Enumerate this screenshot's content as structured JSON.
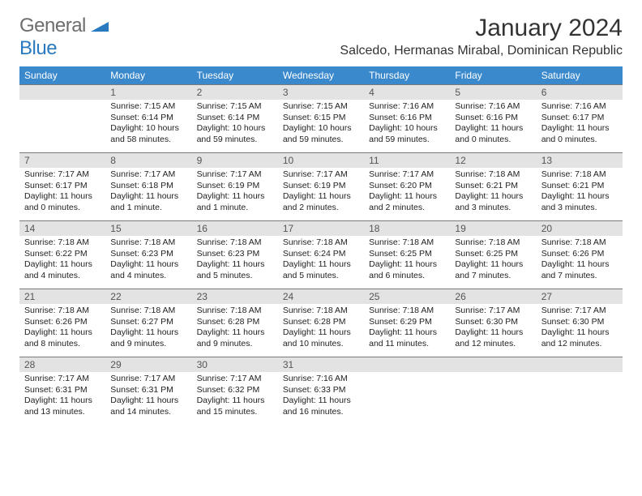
{
  "logo": {
    "text1": "General",
    "text2": "Blue"
  },
  "title": "January 2024",
  "location": "Salcedo, Hermanas Mirabal, Dominican Republic",
  "colors": {
    "header_bg": "#3a89cc",
    "header_text": "#ffffff",
    "daynum_bg": "#e3e3e3",
    "logo_gray": "#6d6d6d",
    "logo_blue": "#2a7abf",
    "border": "#7a7a7a"
  },
  "weekdays": [
    "Sunday",
    "Monday",
    "Tuesday",
    "Wednesday",
    "Thursday",
    "Friday",
    "Saturday"
  ],
  "weeks": [
    [
      null,
      {
        "n": "1",
        "sr": "Sunrise: 7:15 AM",
        "ss": "Sunset: 6:14 PM",
        "dl1": "Daylight: 10 hours",
        "dl2": "and 58 minutes."
      },
      {
        "n": "2",
        "sr": "Sunrise: 7:15 AM",
        "ss": "Sunset: 6:14 PM",
        "dl1": "Daylight: 10 hours",
        "dl2": "and 59 minutes."
      },
      {
        "n": "3",
        "sr": "Sunrise: 7:15 AM",
        "ss": "Sunset: 6:15 PM",
        "dl1": "Daylight: 10 hours",
        "dl2": "and 59 minutes."
      },
      {
        "n": "4",
        "sr": "Sunrise: 7:16 AM",
        "ss": "Sunset: 6:16 PM",
        "dl1": "Daylight: 10 hours",
        "dl2": "and 59 minutes."
      },
      {
        "n": "5",
        "sr": "Sunrise: 7:16 AM",
        "ss": "Sunset: 6:16 PM",
        "dl1": "Daylight: 11 hours",
        "dl2": "and 0 minutes."
      },
      {
        "n": "6",
        "sr": "Sunrise: 7:16 AM",
        "ss": "Sunset: 6:17 PM",
        "dl1": "Daylight: 11 hours",
        "dl2": "and 0 minutes."
      }
    ],
    [
      {
        "n": "7",
        "sr": "Sunrise: 7:17 AM",
        "ss": "Sunset: 6:17 PM",
        "dl1": "Daylight: 11 hours",
        "dl2": "and 0 minutes."
      },
      {
        "n": "8",
        "sr": "Sunrise: 7:17 AM",
        "ss": "Sunset: 6:18 PM",
        "dl1": "Daylight: 11 hours",
        "dl2": "and 1 minute."
      },
      {
        "n": "9",
        "sr": "Sunrise: 7:17 AM",
        "ss": "Sunset: 6:19 PM",
        "dl1": "Daylight: 11 hours",
        "dl2": "and 1 minute."
      },
      {
        "n": "10",
        "sr": "Sunrise: 7:17 AM",
        "ss": "Sunset: 6:19 PM",
        "dl1": "Daylight: 11 hours",
        "dl2": "and 2 minutes."
      },
      {
        "n": "11",
        "sr": "Sunrise: 7:17 AM",
        "ss": "Sunset: 6:20 PM",
        "dl1": "Daylight: 11 hours",
        "dl2": "and 2 minutes."
      },
      {
        "n": "12",
        "sr": "Sunrise: 7:18 AM",
        "ss": "Sunset: 6:21 PM",
        "dl1": "Daylight: 11 hours",
        "dl2": "and 3 minutes."
      },
      {
        "n": "13",
        "sr": "Sunrise: 7:18 AM",
        "ss": "Sunset: 6:21 PM",
        "dl1": "Daylight: 11 hours",
        "dl2": "and 3 minutes."
      }
    ],
    [
      {
        "n": "14",
        "sr": "Sunrise: 7:18 AM",
        "ss": "Sunset: 6:22 PM",
        "dl1": "Daylight: 11 hours",
        "dl2": "and 4 minutes."
      },
      {
        "n": "15",
        "sr": "Sunrise: 7:18 AM",
        "ss": "Sunset: 6:23 PM",
        "dl1": "Daylight: 11 hours",
        "dl2": "and 4 minutes."
      },
      {
        "n": "16",
        "sr": "Sunrise: 7:18 AM",
        "ss": "Sunset: 6:23 PM",
        "dl1": "Daylight: 11 hours",
        "dl2": "and 5 minutes."
      },
      {
        "n": "17",
        "sr": "Sunrise: 7:18 AM",
        "ss": "Sunset: 6:24 PM",
        "dl1": "Daylight: 11 hours",
        "dl2": "and 5 minutes."
      },
      {
        "n": "18",
        "sr": "Sunrise: 7:18 AM",
        "ss": "Sunset: 6:25 PM",
        "dl1": "Daylight: 11 hours",
        "dl2": "and 6 minutes."
      },
      {
        "n": "19",
        "sr": "Sunrise: 7:18 AM",
        "ss": "Sunset: 6:25 PM",
        "dl1": "Daylight: 11 hours",
        "dl2": "and 7 minutes."
      },
      {
        "n": "20",
        "sr": "Sunrise: 7:18 AM",
        "ss": "Sunset: 6:26 PM",
        "dl1": "Daylight: 11 hours",
        "dl2": "and 7 minutes."
      }
    ],
    [
      {
        "n": "21",
        "sr": "Sunrise: 7:18 AM",
        "ss": "Sunset: 6:26 PM",
        "dl1": "Daylight: 11 hours",
        "dl2": "and 8 minutes."
      },
      {
        "n": "22",
        "sr": "Sunrise: 7:18 AM",
        "ss": "Sunset: 6:27 PM",
        "dl1": "Daylight: 11 hours",
        "dl2": "and 9 minutes."
      },
      {
        "n": "23",
        "sr": "Sunrise: 7:18 AM",
        "ss": "Sunset: 6:28 PM",
        "dl1": "Daylight: 11 hours",
        "dl2": "and 9 minutes."
      },
      {
        "n": "24",
        "sr": "Sunrise: 7:18 AM",
        "ss": "Sunset: 6:28 PM",
        "dl1": "Daylight: 11 hours",
        "dl2": "and 10 minutes."
      },
      {
        "n": "25",
        "sr": "Sunrise: 7:18 AM",
        "ss": "Sunset: 6:29 PM",
        "dl1": "Daylight: 11 hours",
        "dl2": "and 11 minutes."
      },
      {
        "n": "26",
        "sr": "Sunrise: 7:17 AM",
        "ss": "Sunset: 6:30 PM",
        "dl1": "Daylight: 11 hours",
        "dl2": "and 12 minutes."
      },
      {
        "n": "27",
        "sr": "Sunrise: 7:17 AM",
        "ss": "Sunset: 6:30 PM",
        "dl1": "Daylight: 11 hours",
        "dl2": "and 12 minutes."
      }
    ],
    [
      {
        "n": "28",
        "sr": "Sunrise: 7:17 AM",
        "ss": "Sunset: 6:31 PM",
        "dl1": "Daylight: 11 hours",
        "dl2": "and 13 minutes."
      },
      {
        "n": "29",
        "sr": "Sunrise: 7:17 AM",
        "ss": "Sunset: 6:31 PM",
        "dl1": "Daylight: 11 hours",
        "dl2": "and 14 minutes."
      },
      {
        "n": "30",
        "sr": "Sunrise: 7:17 AM",
        "ss": "Sunset: 6:32 PM",
        "dl1": "Daylight: 11 hours",
        "dl2": "and 15 minutes."
      },
      {
        "n": "31",
        "sr": "Sunrise: 7:16 AM",
        "ss": "Sunset: 6:33 PM",
        "dl1": "Daylight: 11 hours",
        "dl2": "and 16 minutes."
      },
      null,
      null,
      null
    ]
  ]
}
